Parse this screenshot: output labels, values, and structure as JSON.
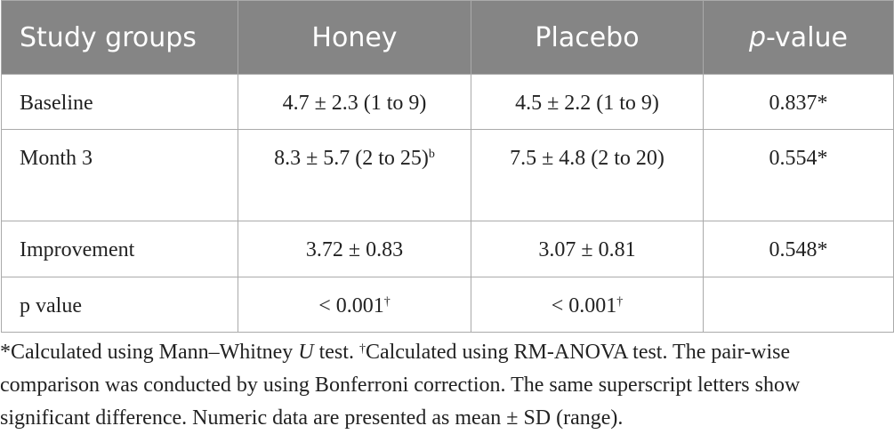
{
  "table": {
    "headers": {
      "study_groups": "Study groups",
      "honey": "Honey",
      "placebo": "Placebo",
      "p_italic": "p",
      "p_rest": "-value"
    },
    "rows": [
      {
        "label": "Baseline",
        "honey": "4.7 ± 2.3 (1 to 9)",
        "honey_sup": "",
        "placebo": "4.5 ± 2.2 (1 to 9)",
        "placebo_sup": "",
        "pvalue": "0.837*"
      },
      {
        "label": "Month 3",
        "honey": "8.3 ± 5.7 (2 to 25)",
        "honey_sup": "b",
        "placebo": "7.5 ± 4.8 (2 to 20)",
        "placebo_sup": "",
        "pvalue": "0.554*"
      },
      {
        "label": "Improvement",
        "honey": "3.72 ± 0.83",
        "honey_sup": "",
        "placebo": "3.07 ± 0.81",
        "placebo_sup": "",
        "pvalue": "0.548*"
      },
      {
        "label": "p value",
        "honey": "< 0.001",
        "honey_sup": "†",
        "placebo": "< 0.001",
        "placebo_sup": "†",
        "pvalue": ""
      }
    ]
  },
  "footnote": {
    "part1": "*Calculated using Mann–Whitney ",
    "u": "U",
    "part2": " test. ",
    "dagger": "†",
    "part3": "Calculated using RM-ANOVA test. The pair-wise comparison was conducted by using Bonferroni correction. The same superscript letters show significant difference. Numeric data are presented as mean ± SD (range)."
  }
}
